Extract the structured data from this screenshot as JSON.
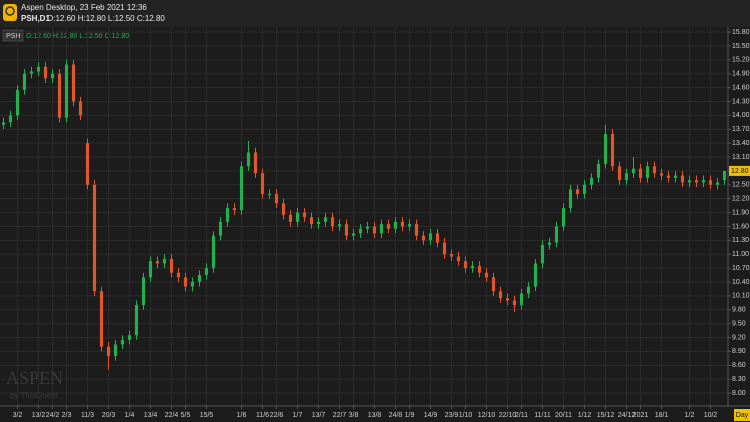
{
  "header": {
    "title": "Aspen Desktop, 23 Feb 2021 12:36",
    "symbol": "PSH,D1",
    "ohlc": "O:12.60 H:12.80 L:12.50 C:12.80"
  },
  "watermark": {
    "brand": "ASPEN",
    "by": "by ThaiQuest"
  },
  "chart_data": {
    "type": "candlestick",
    "symbol_label": "PSH",
    "legend_ohlc": "O:12.60 H:12.80 L:12.50 C:12.80",
    "up_color": "#22b14c",
    "down_color": "#e0572a",
    "grid": true,
    "timeframe": "Day",
    "last_price": {
      "value": 12.8,
      "label": "12.80"
    },
    "xlim": [
      -0.5,
      103.5
    ],
    "ylim": [
      7.72,
      15.91
    ],
    "yticks": [
      {
        "value": 8,
        "label": "8.00"
      },
      {
        "value": 8.3,
        "label": "8.30"
      },
      {
        "value": 8.6,
        "label": "8.60"
      },
      {
        "value": 8.9,
        "label": "8.90"
      },
      {
        "value": 9.2,
        "label": "9.20"
      },
      {
        "value": 9.5,
        "label": "9.50"
      },
      {
        "value": 9.8,
        "label": "9.80"
      },
      {
        "value": 10.1,
        "label": "10.10"
      },
      {
        "value": 10.4,
        "label": "10.40"
      },
      {
        "value": 10.7,
        "label": "10.70"
      },
      {
        "value": 11,
        "label": "11.00"
      },
      {
        "value": 11.3,
        "label": "11.30"
      },
      {
        "value": 11.6,
        "label": "11.60"
      },
      {
        "value": 11.9,
        "label": "11.90"
      },
      {
        "value": 12.2,
        "label": "12.20"
      },
      {
        "value": 12.5,
        "label": "12.50"
      },
      {
        "value": 12.8,
        "label": "12.80"
      },
      {
        "value": 13.1,
        "label": "13.10"
      },
      {
        "value": 13.4,
        "label": "13.40"
      },
      {
        "value": 13.7,
        "label": "13.70"
      },
      {
        "value": 14,
        "label": "14.00"
      },
      {
        "value": 14.3,
        "label": "14.30"
      },
      {
        "value": 14.6,
        "label": "14.60"
      },
      {
        "value": 14.9,
        "label": "14.90"
      },
      {
        "value": 15.2,
        "label": "15.20"
      },
      {
        "value": 15.5,
        "label": "15.50"
      },
      {
        "value": 15.8,
        "label": "15.80"
      }
    ],
    "xticks": [
      {
        "value": 2,
        "label": "3/2"
      },
      {
        "value": 5,
        "label": "13/2"
      },
      {
        "value": 7,
        "label": "24/2"
      },
      {
        "value": 9,
        "label": "2/3"
      },
      {
        "value": 12,
        "label": "11/3"
      },
      {
        "value": 15,
        "label": "20/3"
      },
      {
        "value": 18,
        "label": "1/4"
      },
      {
        "value": 21,
        "label": "13/4"
      },
      {
        "value": 24,
        "label": "22/4"
      },
      {
        "value": 26,
        "label": "5/5"
      },
      {
        "value": 29,
        "label": "15/5"
      },
      {
        "value": 34,
        "label": "1/6"
      },
      {
        "value": 37,
        "label": "11/6"
      },
      {
        "value": 39,
        "label": "22/6"
      },
      {
        "value": 42,
        "label": "1/7"
      },
      {
        "value": 45,
        "label": "13/7"
      },
      {
        "value": 48,
        "label": "22/7"
      },
      {
        "value": 50,
        "label": "3/8"
      },
      {
        "value": 53,
        "label": "13/8"
      },
      {
        "value": 56,
        "label": "24/8"
      },
      {
        "value": 58,
        "label": "1/9"
      },
      {
        "value": 61,
        "label": "14/9"
      },
      {
        "value": 64,
        "label": "23/9"
      },
      {
        "value": 66,
        "label": "1/10"
      },
      {
        "value": 69,
        "label": "12/10"
      },
      {
        "value": 72,
        "label": "22/10"
      },
      {
        "value": 74,
        "label": "2/11"
      },
      {
        "value": 77,
        "label": "11/11"
      },
      {
        "value": 80,
        "label": "20/11"
      },
      {
        "value": 83,
        "label": "1/12"
      },
      {
        "value": 86,
        "label": "15/12"
      },
      {
        "value": 89,
        "label": "24/12"
      },
      {
        "value": 91,
        "label": "2021"
      },
      {
        "value": 94,
        "label": "18/1"
      },
      {
        "value": 98,
        "label": "1/2"
      },
      {
        "value": 101,
        "label": "10/2"
      }
    ],
    "open": [
      13.8,
      13.85,
      14,
      14.55,
      14.9,
      14.95,
      15.05,
      14.8,
      14.9,
      13.95,
      15.1,
      14.3,
      13.4,
      12.5,
      10.2,
      9,
      8.8,
      9.05,
      9.15,
      9.25,
      9.9,
      10.5,
      10.85,
      10.8,
      10.9,
      10.6,
      10.5,
      10.3,
      10.4,
      10.55,
      10.7,
      11.4,
      11.7,
      12,
      11.95,
      12.9,
      13.2,
      12.75,
      12.3,
      12.3,
      12.1,
      11.85,
      11.7,
      11.9,
      11.8,
      11.65,
      11.7,
      11.8,
      11.6,
      11.65,
      11.4,
      11.45,
      11.55,
      11.6,
      11.45,
      11.65,
      11.55,
      11.7,
      11.6,
      11.65,
      11.4,
      11.3,
      11.45,
      11.25,
      11,
      10.95,
      10.85,
      10.7,
      10.75,
      10.6,
      10.5,
      10.2,
      10.05,
      10,
      9.9,
      10.15,
      10.3,
      10.8,
      11.2,
      11.25,
      11.6,
      12,
      12.4,
      12.3,
      12.5,
      12.65,
      12.95,
      13.6,
      12.9,
      12.6,
      12.75,
      12.85,
      12.65,
      12.9,
      12.75,
      12.7,
      12.65,
      12.7,
      12.55,
      12.6,
      12.55,
      12.6,
      12.5,
      12.6
    ],
    "high": [
      13.95,
      14.1,
      14.65,
      15,
      15.05,
      15.15,
      15.15,
      15,
      15,
      15.2,
      15.2,
      14.4,
      13.5,
      12.6,
      10.3,
      9.1,
      9.15,
      9.25,
      9.35,
      10,
      10.6,
      10.95,
      10.95,
      11,
      11,
      10.7,
      10.6,
      10.5,
      10.65,
      10.8,
      11.5,
      11.8,
      12.1,
      12.1,
      13,
      13.45,
      13.3,
      12.85,
      12.4,
      12.4,
      12.2,
      11.95,
      12,
      12,
      11.9,
      11.8,
      11.9,
      11.9,
      11.75,
      11.75,
      11.55,
      11.65,
      11.7,
      11.7,
      11.75,
      11.75,
      11.8,
      11.8,
      11.75,
      11.75,
      11.5,
      11.55,
      11.55,
      11.35,
      11.1,
      11.05,
      10.95,
      10.85,
      10.85,
      10.7,
      10.6,
      10.3,
      10.15,
      10.1,
      10.25,
      10.4,
      10.9,
      11.3,
      11.35,
      11.7,
      12.1,
      12.5,
      12.5,
      12.6,
      12.75,
      13.05,
      13.8,
      13.7,
      13,
      12.85,
      13.1,
      12.95,
      13,
      13,
      12.85,
      12.8,
      12.8,
      12.8,
      12.7,
      12.7,
      12.7,
      12.7,
      12.65,
      12.8
    ],
    "low": [
      13.7,
      13.75,
      13.9,
      14.45,
      14.8,
      14.85,
      14.7,
      14.7,
      13.85,
      13.85,
      14.2,
      13.9,
      12.4,
      10.1,
      8.9,
      8.5,
      8.7,
      8.95,
      9.05,
      9.15,
      9.8,
      10.4,
      10.7,
      10.7,
      10.5,
      10.4,
      10.2,
      10.2,
      10.3,
      10.45,
      10.6,
      11.3,
      11.6,
      11.85,
      11.85,
      12.8,
      12.65,
      12.2,
      12.2,
      12,
      11.75,
      11.6,
      11.6,
      11.7,
      11.55,
      11.55,
      11.6,
      11.5,
      11.5,
      11.3,
      11.3,
      11.35,
      11.45,
      11.35,
      11.35,
      11.45,
      11.45,
      11.5,
      11.5,
      11.3,
      11.2,
      11.2,
      11.15,
      10.9,
      10.85,
      10.75,
      10.6,
      10.6,
      10.5,
      10.4,
      10.1,
      9.95,
      9.9,
      9.75,
      9.8,
      10.05,
      10.2,
      10.7,
      11.1,
      11.15,
      11.5,
      11.9,
      12.2,
      12.2,
      12.4,
      12.55,
      12.85,
      12.8,
      12.5,
      12.5,
      12.65,
      12.55,
      12.55,
      12.65,
      12.6,
      12.55,
      12.55,
      12.45,
      12.45,
      12.45,
      12.45,
      12.4,
      12.4,
      12.5
    ],
    "close": [
      13.85,
      14,
      14.55,
      14.9,
      14.95,
      15.05,
      14.8,
      14.9,
      13.95,
      15.1,
      14.3,
      14,
      12.5,
      10.2,
      9,
      8.8,
      9.05,
      9.15,
      9.25,
      9.9,
      10.5,
      10.85,
      10.8,
      10.9,
      10.6,
      10.5,
      10.3,
      10.4,
      10.55,
      10.7,
      11.4,
      11.7,
      12,
      11.95,
      12.9,
      13.2,
      12.75,
      12.3,
      12.3,
      12.1,
      11.85,
      11.7,
      11.9,
      11.8,
      11.65,
      11.7,
      11.8,
      11.6,
      11.65,
      11.4,
      11.45,
      11.55,
      11.6,
      11.45,
      11.65,
      11.55,
      11.7,
      11.6,
      11.65,
      11.4,
      11.3,
      11.45,
      11.25,
      11,
      10.95,
      10.85,
      10.7,
      10.75,
      10.6,
      10.5,
      10.2,
      10.05,
      10,
      9.9,
      10.15,
      10.3,
      10.8,
      11.2,
      11.25,
      11.6,
      12,
      12.4,
      12.3,
      12.5,
      12.65,
      12.95,
      13.6,
      12.9,
      12.6,
      12.75,
      12.85,
      12.65,
      12.9,
      12.75,
      12.7,
      12.65,
      12.7,
      12.55,
      12.6,
      12.55,
      12.6,
      12.5,
      12.55,
      12.8
    ]
  }
}
